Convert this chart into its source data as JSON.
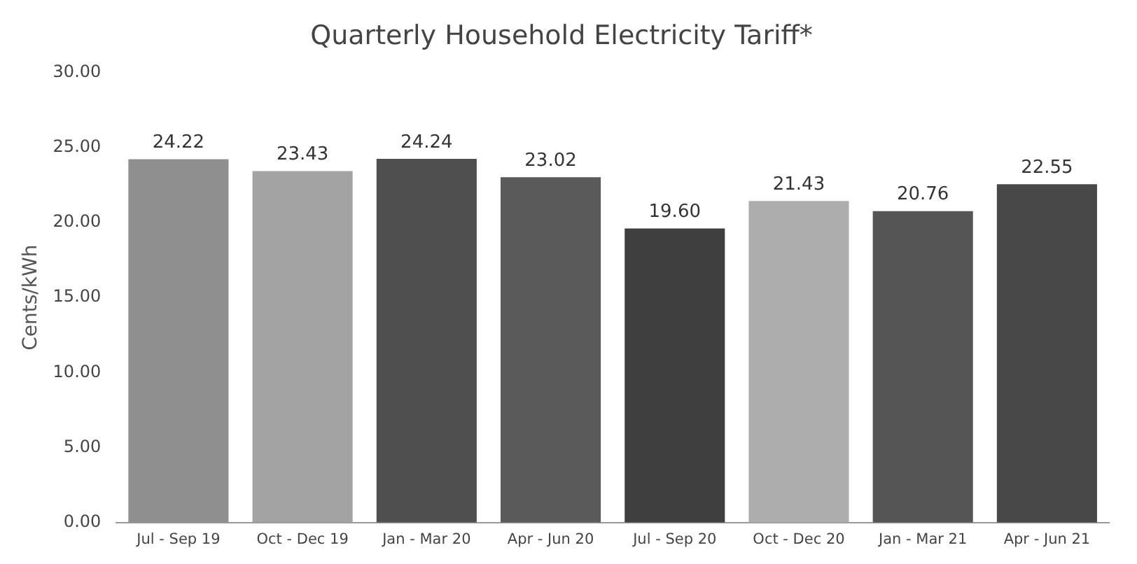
{
  "chart_data": {
    "type": "bar",
    "title": "Quarterly Household Electricity Tariff*",
    "ylabel": "Cents/kWh",
    "categories": [
      "Jul - Sep 19",
      "Oct - Dec 19",
      "Jan - Mar 20",
      "Apr - Jun 20",
      "Jul - Sep 20",
      "Oct - Dec 20",
      "Jan - Mar 21",
      "Apr - Jun 21"
    ],
    "values": [
      24.22,
      23.43,
      24.24,
      23.02,
      19.6,
      21.43,
      20.76,
      22.55
    ],
    "value_labels": [
      "24.22",
      "23.43",
      "24.24",
      "23.02",
      "19.60",
      "21.43",
      "20.76",
      "22.55"
    ],
    "colors": [
      "#8f8f8f",
      "#a3a3a3",
      "#4f4f4f",
      "#5a5a5a",
      "#3f3f3f",
      "#adadad",
      "#555555",
      "#484848"
    ],
    "ylim": [
      0,
      30
    ],
    "yticks": [
      {
        "value": 0,
        "label": "0.00"
      },
      {
        "value": 5,
        "label": "5.00"
      },
      {
        "value": 10,
        "label": "10.00"
      },
      {
        "value": 15,
        "label": "15.00"
      },
      {
        "value": 20,
        "label": "20.00"
      },
      {
        "value": 25,
        "label": "25.00"
      },
      {
        "value": 30,
        "label": "30.00"
      }
    ],
    "grid": false,
    "legend": false
  }
}
